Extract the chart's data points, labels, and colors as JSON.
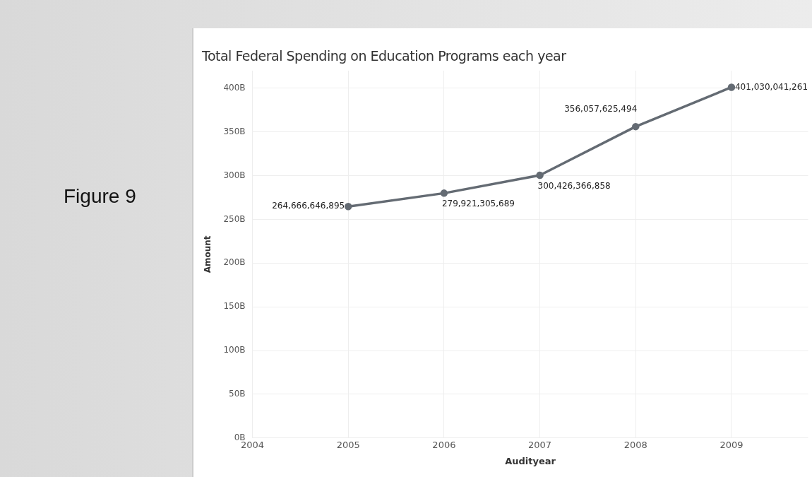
{
  "chart_data": {
    "type": "line",
    "title": "Total Federal Spending on Education Programs each year",
    "xlabel": "Audityear",
    "ylabel": "Amount",
    "annotations": [
      "Figure 9"
    ],
    "x": [
      2005,
      2006,
      2007,
      2008,
      2009
    ],
    "series": [
      {
        "color": "#646b73",
        "values": [
          264666646895,
          279921305689,
          300426366858,
          356057625494,
          401030041261
        ],
        "value_labels": [
          "264,666,646,895",
          "279,921,305,689",
          "300,426,366,858",
          "356,057,625,494",
          "401,030,041,261"
        ]
      }
    ],
    "xlim": [
      2004,
      2009.8
    ],
    "xticks": [
      2004,
      2005,
      2006,
      2007,
      2008,
      2009
    ],
    "ylim": [
      0,
      420000000000
    ],
    "yticks": [
      {
        "value": 0,
        "label": "0B"
      },
      {
        "value": 50000000000,
        "label": "50B"
      },
      {
        "value": 100000000000,
        "label": "100B"
      },
      {
        "value": 150000000000,
        "label": "150B"
      },
      {
        "value": 200000000000,
        "label": "200B"
      },
      {
        "value": 250000000000,
        "label": "250B"
      },
      {
        "value": 300000000000,
        "label": "300B"
      },
      {
        "value": 350000000000,
        "label": "350B"
      },
      {
        "value": 400000000000,
        "label": "400B"
      }
    ],
    "grid": true,
    "marker": "circle",
    "line_style": "solid"
  }
}
